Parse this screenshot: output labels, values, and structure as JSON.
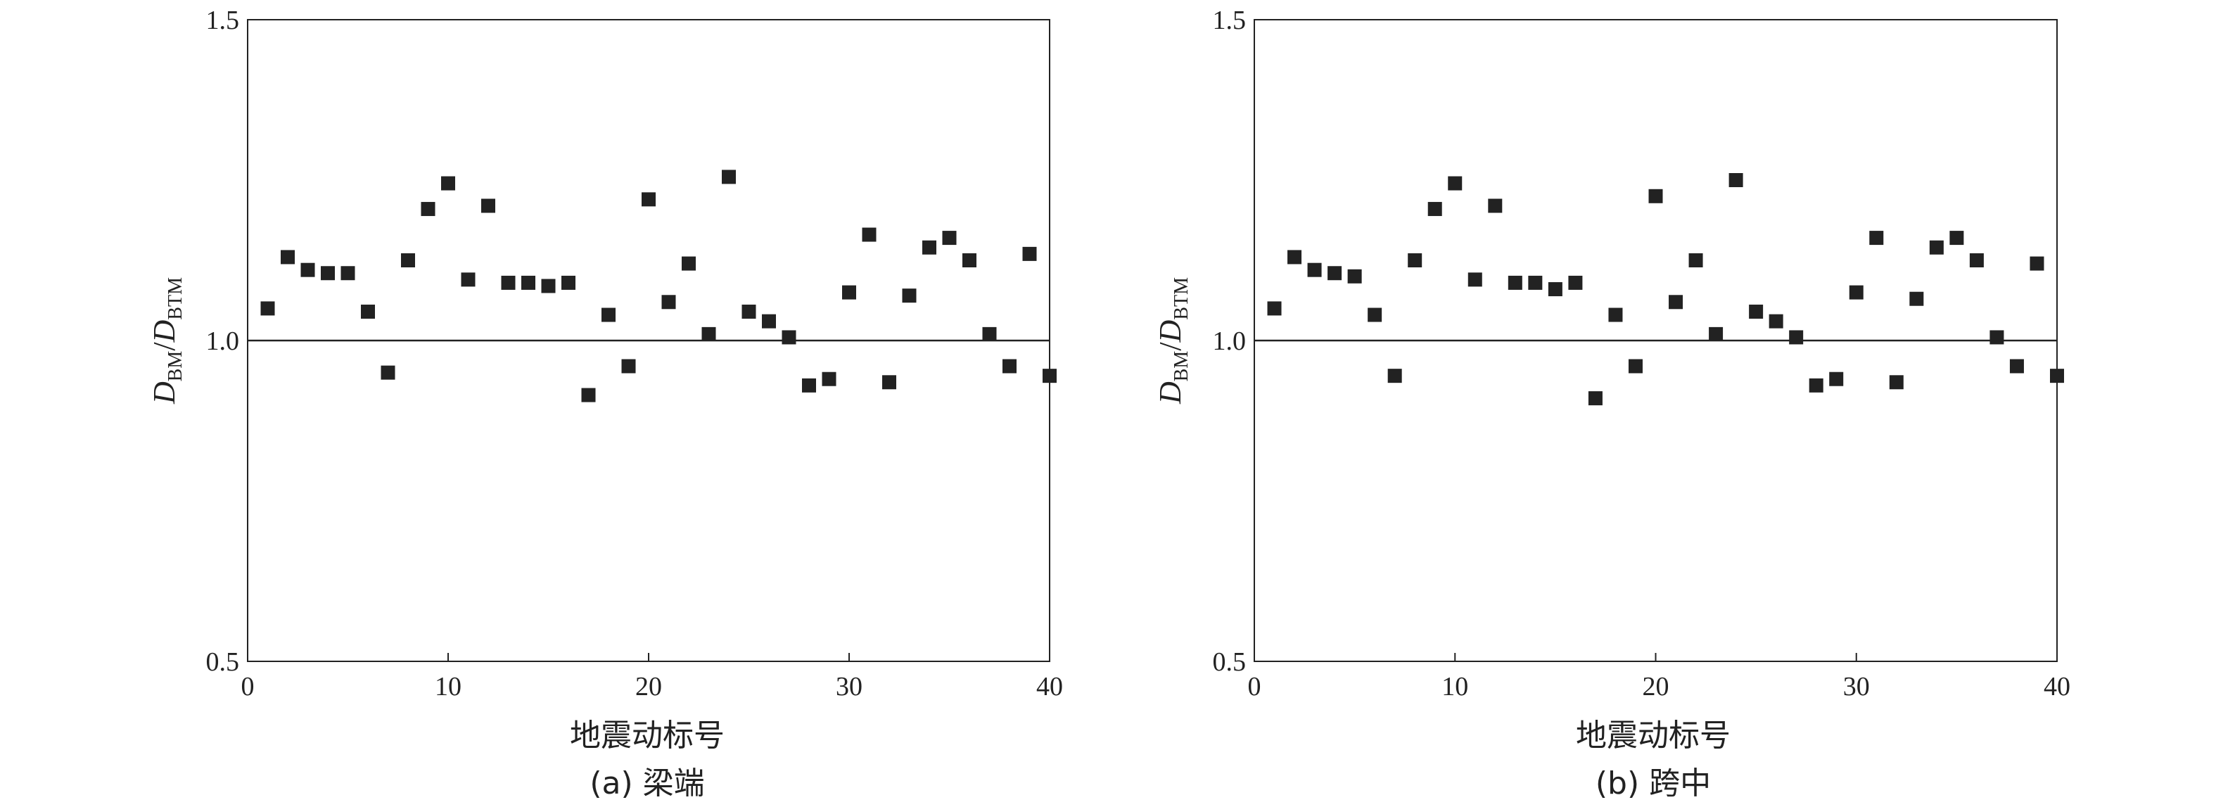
{
  "chart_data": [
    {
      "type": "scatter",
      "caption": "(a) 梁端",
      "xlabel": "地震动标号",
      "ylabel": {
        "D1": "D",
        "sub1": "BM",
        "slash": "/",
        "D2": "D",
        "sub2": "BTM"
      },
      "xlim": [
        0,
        40
      ],
      "ylim": [
        0.5,
        1.5
      ],
      "xticks": [
        "0",
        "10",
        "20",
        "30",
        "40"
      ],
      "yticks": [
        "0.5",
        "1.0",
        "1.5"
      ],
      "reference_line": 1.0,
      "marker": "square",
      "marker_color": "#222222",
      "series": [
        {
          "x": [
            1,
            2,
            3,
            4,
            5,
            6,
            7,
            8,
            9,
            10,
            11,
            12,
            13,
            14,
            15,
            16,
            17,
            18,
            19,
            20,
            21,
            22,
            23,
            24,
            25,
            26,
            27,
            28,
            29,
            30,
            31,
            32,
            33,
            34,
            35,
            36,
            37,
            38,
            39,
            40
          ],
          "y": [
            1.05,
            1.13,
            1.11,
            1.105,
            1.105,
            1.045,
            0.95,
            1.125,
            1.205,
            1.245,
            1.095,
            1.21,
            1.09,
            1.09,
            1.085,
            1.09,
            0.915,
            1.04,
            0.96,
            1.22,
            1.06,
            1.12,
            1.01,
            1.255,
            1.045,
            1.03,
            1.005,
            0.93,
            0.94,
            1.075,
            1.165,
            0.935,
            1.07,
            1.145,
            1.16,
            1.125,
            1.01,
            0.96,
            1.135,
            0.945
          ]
        }
      ]
    },
    {
      "type": "scatter",
      "caption": "(b) 跨中",
      "xlabel": "地震动标号",
      "ylabel": {
        "D1": "D",
        "sub1": "BM",
        "slash": "/",
        "D2": "D",
        "sub2": "BTM"
      },
      "xlim": [
        0,
        40
      ],
      "ylim": [
        0.5,
        1.5
      ],
      "xticks": [
        "0",
        "10",
        "20",
        "30",
        "40"
      ],
      "yticks": [
        "0.5",
        "1.0",
        "1.5"
      ],
      "reference_line": 1.0,
      "marker": "square",
      "marker_color": "#222222",
      "series": [
        {
          "x": [
            1,
            2,
            3,
            4,
            5,
            6,
            7,
            8,
            9,
            10,
            11,
            12,
            13,
            14,
            15,
            16,
            17,
            18,
            19,
            20,
            21,
            22,
            23,
            24,
            25,
            26,
            27,
            28,
            29,
            30,
            31,
            32,
            33,
            34,
            35,
            36,
            37,
            38,
            39,
            40
          ],
          "y": [
            1.05,
            1.13,
            1.11,
            1.105,
            1.1,
            1.04,
            0.945,
            1.125,
            1.205,
            1.245,
            1.095,
            1.21,
            1.09,
            1.09,
            1.08,
            1.09,
            0.91,
            1.04,
            0.96,
            1.225,
            1.06,
            1.125,
            1.01,
            1.25,
            1.045,
            1.03,
            1.005,
            0.93,
            0.94,
            1.075,
            1.16,
            0.935,
            1.065,
            1.145,
            1.16,
            1.125,
            1.005,
            0.96,
            1.12,
            0.945
          ]
        }
      ]
    }
  ]
}
